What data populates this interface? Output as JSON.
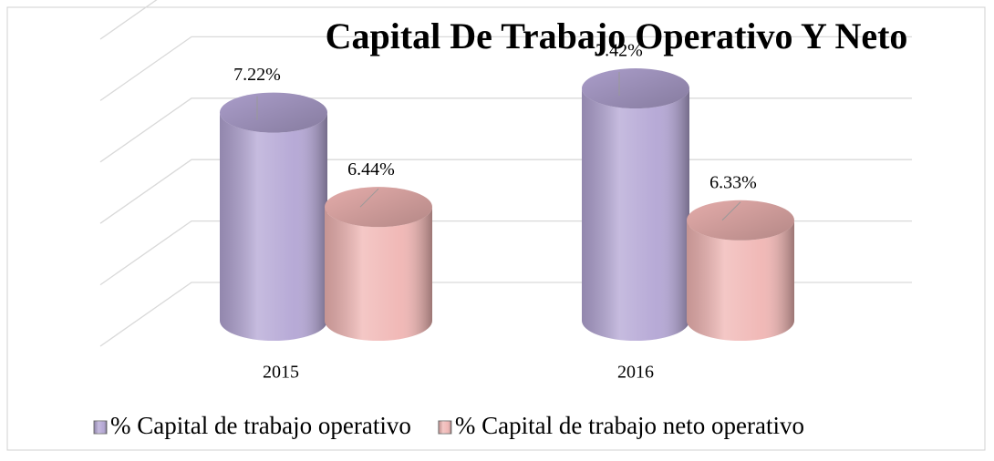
{
  "chart_data": {
    "type": "bar3d",
    "title": "Capital De Trabajo Operativo Y Neto",
    "categories": [
      "2015",
      "2016"
    ],
    "series": [
      {
        "name": "% Capital de trabajo operativo",
        "color": "#b3a5d4",
        "values": [
          7.22,
          7.42
        ],
        "value_labels": [
          "7.22%",
          "7.42%"
        ]
      },
      {
        "name": "% Capital de trabajo neto operativo",
        "color": "#f0b5b3",
        "values": [
          6.44,
          6.33
        ],
        "value_labels": [
          "6.44%",
          "6.33%"
        ]
      }
    ],
    "ylim": [
      5.5,
      8
    ],
    "yticks": [
      5.5,
      6,
      6.5,
      7,
      7.5,
      8
    ],
    "grid": true,
    "legend": "bottom"
  }
}
